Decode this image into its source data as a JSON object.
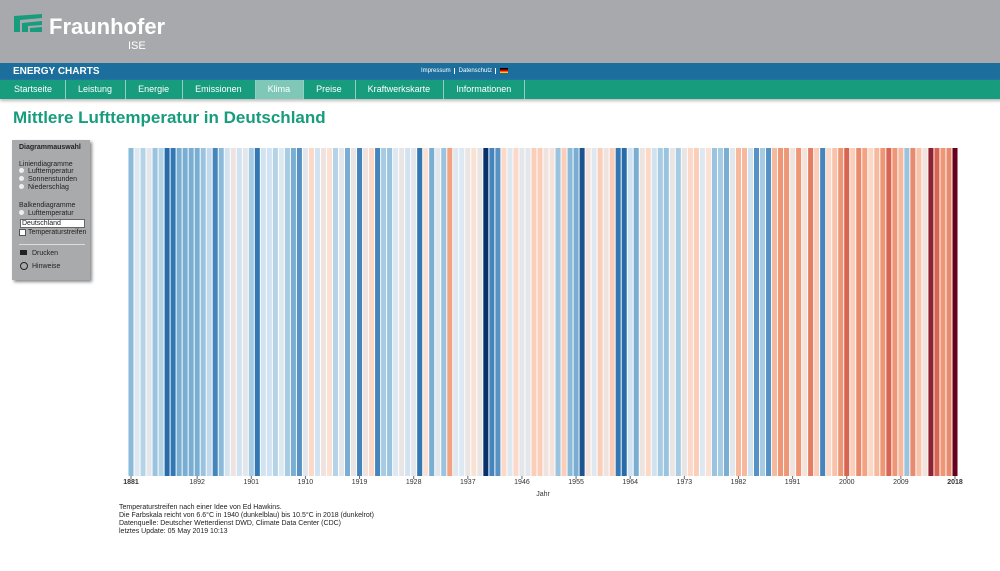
{
  "header": {
    "logo": "Fraunhofer",
    "logo_sub": "ISE"
  },
  "navbar": {
    "brand": "ENERGY CHARTS",
    "links": [
      "Impressum",
      "Datenschutz"
    ]
  },
  "tabs": {
    "items": [
      "Startseite",
      "Leistung",
      "Energie",
      "Emissionen",
      "Klima",
      "Preise",
      "Kraftwerkskarte",
      "Informationen"
    ],
    "active": 4
  },
  "page_title": "Mittlere Lufttemperatur in Deutschland",
  "sidebar": {
    "title": "Diagrammauswahl",
    "line_heading": "Liniendiagramme",
    "line_options": [
      "Lufttemperatur",
      "Sonnenstunden",
      "Niederschlag"
    ],
    "bar_heading": "Balkendiagramme",
    "bar_options": [
      "Lufttemperatur"
    ],
    "region": "Deutschland",
    "stripes": "Temperaturstreifen",
    "print": "Drucken",
    "notes": "Hinweise"
  },
  "chart_data": {
    "type": "stripes",
    "x_label": "Jahr",
    "x": [
      1881,
      1882,
      1883,
      1884,
      1885,
      1886,
      1887,
      1888,
      1889,
      1890,
      1891,
      1892,
      1893,
      1894,
      1895,
      1896,
      1897,
      1898,
      1899,
      1900,
      1901,
      1902,
      1903,
      1904,
      1905,
      1906,
      1907,
      1908,
      1909,
      1910,
      1911,
      1912,
      1913,
      1914,
      1915,
      1916,
      1917,
      1918,
      1919,
      1920,
      1921,
      1922,
      1923,
      1924,
      1925,
      1926,
      1927,
      1928,
      1929,
      1930,
      1931,
      1932,
      1933,
      1934,
      1935,
      1936,
      1937,
      1938,
      1939,
      1940,
      1941,
      1942,
      1943,
      1944,
      1945,
      1946,
      1947,
      1948,
      1949,
      1950,
      1951,
      1952,
      1953,
      1954,
      1955,
      1956,
      1957,
      1958,
      1959,
      1960,
      1961,
      1962,
      1963,
      1964,
      1965,
      1966,
      1967,
      1968,
      1969,
      1970,
      1971,
      1972,
      1973,
      1974,
      1975,
      1976,
      1977,
      1978,
      1979,
      1980,
      1981,
      1982,
      1983,
      1984,
      1985,
      1986,
      1987,
      1988,
      1989,
      1990,
      1991,
      1992,
      1993,
      1994,
      1995,
      1996,
      1997,
      1998,
      1999,
      2000,
      2001,
      2002,
      2003,
      2004,
      2005,
      2006,
      2007,
      2008,
      2009,
      2010,
      2011,
      2012,
      2013,
      2014,
      2015,
      2016,
      2017,
      2018
    ],
    "values": [
      7.7,
      8.3,
      8.0,
      8.4,
      7.8,
      8.0,
      7.1,
      7.2,
      7.6,
      7.6,
      7.6,
      7.6,
      7.8,
      8.1,
      7.3,
      7.7,
      8.2,
      8.6,
      8.2,
      8.4,
      7.9,
      7.2,
      8.2,
      8.2,
      8.0,
      8.3,
      7.9,
      7.6,
      7.4,
      8.4,
      8.9,
      8.2,
      8.6,
      8.8,
      8.0,
      8.4,
      7.6,
      8.5,
      7.3,
      8.6,
      8.9,
      7.3,
      7.9,
      7.8,
      8.3,
      8.5,
      8.2,
      8.4,
      7.2,
      8.8,
      7.6,
      8.4,
      7.8,
      9.4,
      8.3,
      8.3,
      8.5,
      8.8,
      8.5,
      6.6,
      7.3,
      7.4,
      8.9,
      8.3,
      8.9,
      8.4,
      8.4,
      9.0,
      9.0,
      8.6,
      8.7,
      7.8,
      9.0,
      7.7,
      7.6,
      6.9,
      8.7,
      8.3,
      9.0,
      8.6,
      9.0,
      7.2,
      7.1,
      8.2,
      7.6,
      8.6,
      8.9,
      8.2,
      7.9,
      7.8,
      8.5,
      7.9,
      8.5,
      8.9,
      9.0,
      8.3,
      8.8,
      7.8,
      7.9,
      7.6,
      8.4,
      9.2,
      9.2,
      8.2,
      7.4,
      7.9,
      7.4,
      9.2,
      9.5,
      9.5,
      8.6,
      9.5,
      8.7,
      9.7,
      9.0,
      7.3,
      8.9,
      9.1,
      9.5,
      9.9,
      9.0,
      9.6,
      9.4,
      8.9,
      9.2,
      9.5,
      9.9,
      9.5,
      9.2,
      7.8,
      9.6,
      9.1,
      8.7,
      10.3,
      9.9,
      9.5,
      9.6,
      10.5
    ],
    "clim": [
      6.6,
      10.5
    ],
    "colors": [
      "#08306b",
      "#2c72b0",
      "#8dbcdb",
      "#dbe8f3",
      "#fde0d2",
      "#f4a582",
      "#d6604d",
      "#67001f"
    ],
    "xticks": [
      1881,
      1892,
      1901,
      1910,
      1919,
      1928,
      1937,
      1946,
      1955,
      1964,
      1973,
      1982,
      1991,
      2000,
      2009,
      2018
    ],
    "bold_ticks": [
      1881,
      2018
    ]
  },
  "footer": [
    "Temperaturstreifen nach einer Idee von Ed Hawkins.",
    "Die Farbskala reicht von 6.6°C in 1940 (dunkelblau) bis 10.5°C in 2018 (dunkelrot)",
    "Datenquelle: Deutscher Wetterdienst DWD, Climate Data Center (CDC)",
    "letztes Update: 05 May 2019 10:13"
  ]
}
